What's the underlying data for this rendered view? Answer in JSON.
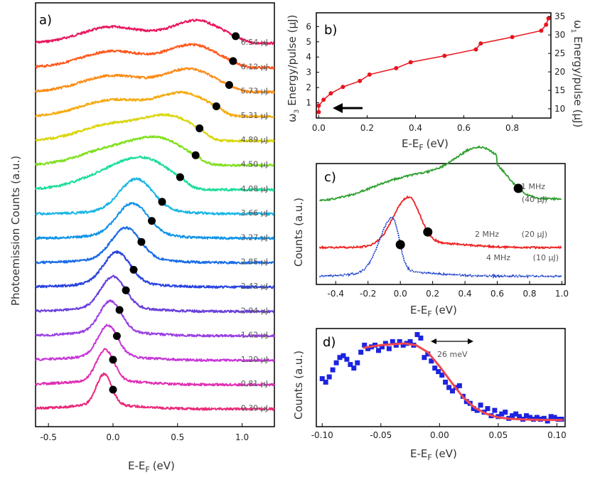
{
  "chart_data": [
    {
      "panel": "a)",
      "type": "line",
      "xlabel": "E-E",
      "xlabel_sub": "F",
      "xlabel_unit": "(eV)",
      "ylabel": "Photoemission Counts (a.u.)",
      "xlim": [
        -0.6,
        1.25
      ],
      "xticks": [
        "-0.5",
        "0.0",
        "0.5",
        "1.0"
      ],
      "tick_values": [
        -0.5,
        0,
        0.5,
        1.0
      ],
      "series": [
        {
          "label": "6.54 μJ",
          "color": "#e8175d",
          "marker_x": 0.95,
          "profile": "w",
          "peak": 0.65
        },
        {
          "label": "6.12 μJ",
          "color": "#ff5a1f",
          "marker_x": 0.93,
          "profile": "w",
          "peak": 0.62
        },
        {
          "label": "5.73 μJ",
          "color": "#ff8a14",
          "marker_x": 0.9,
          "profile": "w",
          "peak": 0.6
        },
        {
          "label": "5.31 μJ",
          "color": "#f5ab12",
          "marker_x": 0.8,
          "profile": "w",
          "peak": 0.55
        },
        {
          "label": "4.89 μJ",
          "color": "#d9d60e",
          "marker_x": 0.67,
          "profile": "w",
          "peak": 0.45
        },
        {
          "label": "4.50 μJ",
          "color": "#7fe01d",
          "marker_x": 0.64,
          "profile": "w",
          "peak": 0.38
        },
        {
          "label": "4.08 μJ",
          "color": "#1ede9a",
          "marker_x": 0.52,
          "profile": "w",
          "peak": 0.28
        },
        {
          "label": "3.66 μJ",
          "color": "#1ab5e6",
          "marker_x": 0.38,
          "profile": "n",
          "peak": 0.18
        },
        {
          "label": "3.27 μJ",
          "color": "#1294e8",
          "marker_x": 0.3,
          "profile": "n",
          "peak": 0.15
        },
        {
          "label": "2.85 μJ",
          "color": "#1a6de6",
          "marker_x": 0.22,
          "profile": "n",
          "peak": 0.1
        },
        {
          "label": "2.43 μJ",
          "color": "#2a44e0",
          "marker_x": 0.16,
          "profile": "n",
          "peak": 0.03
        },
        {
          "label": "2.04 μJ",
          "color": "#6a3fdc",
          "marker_x": 0.1,
          "profile": "n",
          "peak": 0.0
        },
        {
          "label": "1.62 μJ",
          "color": "#9a40e3",
          "marker_x": 0.05,
          "profile": "n",
          "peak": -0.02
        },
        {
          "label": "1.20 μJ",
          "color": "#c637d8",
          "marker_x": 0.03,
          "profile": "n",
          "peak": -0.04
        },
        {
          "label": "0.81 μJ",
          "color": "#e02fb5",
          "marker_x": 0.0,
          "profile": "n",
          "peak": -0.06
        },
        {
          "label": "0.39 μJ",
          "color": "#ea2a7a",
          "marker_x": 0.0,
          "profile": "n",
          "peak": -0.07
        }
      ]
    },
    {
      "panel": "b)",
      "type": "line",
      "xlabel": "E-E",
      "xlabel_sub": "F",
      "xlabel_unit": "(eV)",
      "ylabel_left": "ω",
      "ylabel_left_sub": "3",
      "ylabel_left_rest": " Energy/pulse (μJ)",
      "ylabel_right": "ω",
      "ylabel_right_sub": "1",
      "ylabel_right_rest": " Energy/pulse (μJ)",
      "xlim": [
        -0.01,
        0.96
      ],
      "ylim": [
        0,
        6.9
      ],
      "y2lim": [
        7.5,
        36
      ],
      "xticks": [
        "0.0",
        "0.2",
        "0.4",
        "0.6",
        "0.8"
      ],
      "yticks": [
        "1",
        "2",
        "3",
        "4",
        "5",
        "6"
      ],
      "y2ticks": [
        "10",
        "15",
        "20",
        "25",
        "30",
        "35"
      ],
      "color": "#e8141e",
      "x": [
        0,
        0,
        0.02,
        0.05,
        0.1,
        0.17,
        0.21,
        0.32,
        0.38,
        0.52,
        0.65,
        0.67,
        0.8,
        0.92,
        0.94,
        0.95
      ],
      "y": [
        0.39,
        0.81,
        1.2,
        1.62,
        2.04,
        2.43,
        2.85,
        3.27,
        3.66,
        4.08,
        4.5,
        4.89,
        5.31,
        5.73,
        6.12,
        6.54
      ]
    },
    {
      "panel": "c)",
      "type": "line",
      "xlabel": "E-E",
      "xlabel_sub": "F",
      "xlabel_unit": "(eV)",
      "ylabel": "Counts (a.u.)",
      "xlim": [
        -0.52,
        1.02
      ],
      "xticks": [
        "-0.4",
        "-0.2",
        "0.0",
        "0.2",
        "0.4",
        "0.6",
        "0.8",
        "1.0"
      ],
      "tick_values": [
        -0.4,
        -0.2,
        0,
        0.2,
        0.4,
        0.6,
        0.8,
        1.0
      ],
      "series": [
        {
          "name": "1 MHz",
          "sub": "(40 μJ)",
          "color": "#2ea02e",
          "marker_x": 0.73
        },
        {
          "name": "2 MHz",
          "sub": "(20 μJ)",
          "color": "#ee2222",
          "marker_x": 0.17
        },
        {
          "name": "4 MHz",
          "sub": "(10 μJ)",
          "color": "#2244cc",
          "marker_x": 0.0
        }
      ]
    },
    {
      "panel": "d)",
      "type": "scatter",
      "xlabel": "E-E",
      "xlabel_sub": "F",
      "xlabel_unit": "(eV)",
      "ylabel": "Counts (a.u.)",
      "xlim": [
        -0.105,
        0.107
      ],
      "xticks": [
        "-0.10",
        "-0.05",
        "0.00",
        "0.05",
        "0.10"
      ],
      "tick_values": [
        -0.1,
        -0.05,
        0,
        0.05,
        0.1
      ],
      "annotation": "26 meV",
      "data_color": "#1c24e0",
      "fit_color": "#f0484f",
      "x": [
        -0.1,
        -0.097,
        -0.094,
        -0.091,
        -0.088,
        -0.085,
        -0.082,
        -0.079,
        -0.076,
        -0.073,
        -0.07,
        -0.067,
        -0.064,
        -0.061,
        -0.058,
        -0.055,
        -0.052,
        -0.049,
        -0.046,
        -0.043,
        -0.04,
        -0.037,
        -0.034,
        -0.031,
        -0.028,
        -0.025,
        -0.022,
        -0.019,
        -0.016,
        -0.013,
        -0.01,
        -0.007,
        -0.004,
        -0.001,
        0.002,
        0.005,
        0.008,
        0.011,
        0.014,
        0.017,
        0.02,
        0.023,
        0.026,
        0.029,
        0.032,
        0.035,
        0.038,
        0.041,
        0.044,
        0.047,
        0.05,
        0.053,
        0.056,
        0.059,
        0.062,
        0.065,
        0.068,
        0.071,
        0.074,
        0.077,
        0.08,
        0.083,
        0.086,
        0.089,
        0.092,
        0.095,
        0.098,
        0.101,
        0.104
      ],
      "y": [
        0.48,
        0.44,
        0.5,
        0.58,
        0.66,
        0.72,
        0.74,
        0.7,
        0.64,
        0.6,
        0.66,
        0.78,
        0.86,
        0.82,
        0.84,
        0.86,
        0.8,
        0.84,
        0.88,
        0.82,
        0.9,
        0.86,
        0.9,
        0.86,
        0.88,
        0.9,
        0.86,
        0.98,
        0.94,
        0.72,
        0.76,
        0.68,
        0.6,
        0.56,
        0.52,
        0.44,
        0.38,
        0.34,
        0.38,
        0.4,
        0.28,
        0.22,
        0.2,
        0.14,
        0.12,
        0.18,
        0.1,
        0.14,
        0.06,
        0.12,
        0.05,
        0.08,
        0.1,
        0.03,
        0.06,
        0.08,
        0.05,
        0.02,
        0.06,
        0.04,
        0.02,
        0.04,
        0.02,
        0.03,
        0.0,
        0.05,
        0.04,
        0.02,
        0.02
      ],
      "fit_x": [
        -0.065,
        -0.06,
        -0.05,
        -0.04,
        -0.03,
        -0.02,
        -0.01,
        0,
        0.01,
        0.02,
        0.03,
        0.04,
        0.05,
        0.06,
        0.07,
        0.08,
        0.09,
        0.1,
        0.105
      ],
      "fit_y": [
        0.83,
        0.84,
        0.86,
        0.87,
        0.88,
        0.86,
        0.78,
        0.62,
        0.44,
        0.27,
        0.15,
        0.08,
        0.04,
        0.025,
        0.018,
        0.014,
        0.012,
        0.011,
        0.011
      ]
    }
  ]
}
